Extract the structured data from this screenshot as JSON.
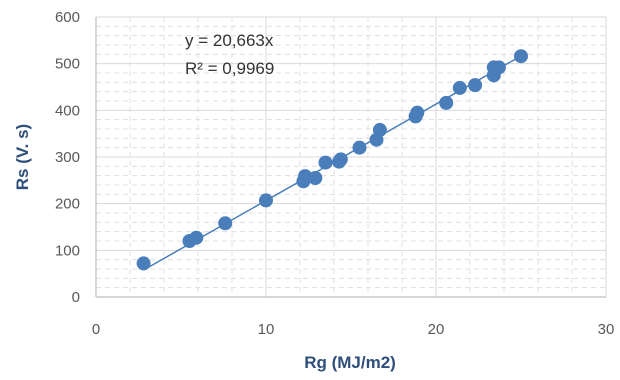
{
  "chart_data": {
    "type": "scatter",
    "xlabel": "Rg (MJ/m2)",
    "ylabel": "Rs (V. s)",
    "xlim": [
      0,
      30
    ],
    "ylim": [
      0,
      600
    ],
    "x_ticks": [
      "0",
      "10",
      "20",
      "30"
    ],
    "y_ticks": [
      "0",
      "100",
      "200",
      "300",
      "400",
      "500",
      "600"
    ],
    "grid": true,
    "colors": {
      "marker": "#4a7ebb",
      "trendline": "#4a7ebb",
      "grid": "#d9d9d9",
      "axis": "#bfbfbf"
    },
    "annotations": {
      "equation": "y = 20,663x",
      "r_squared": "R² = 0,9969"
    },
    "trendline": {
      "type": "linear",
      "slope": 20.663,
      "intercept": 0,
      "x_range": [
        2.8,
        25
      ]
    },
    "points": [
      {
        "x": 2.8,
        "y": 72
      },
      {
        "x": 5.5,
        "y": 120
      },
      {
        "x": 5.9,
        "y": 127
      },
      {
        "x": 7.6,
        "y": 158
      },
      {
        "x": 10.0,
        "y": 207
      },
      {
        "x": 12.2,
        "y": 248
      },
      {
        "x": 12.3,
        "y": 259
      },
      {
        "x": 12.9,
        "y": 255
      },
      {
        "x": 13.5,
        "y": 288
      },
      {
        "x": 14.3,
        "y": 290
      },
      {
        "x": 14.4,
        "y": 295
      },
      {
        "x": 15.5,
        "y": 320
      },
      {
        "x": 16.5,
        "y": 337
      },
      {
        "x": 16.7,
        "y": 358
      },
      {
        "x": 18.8,
        "y": 387
      },
      {
        "x": 18.9,
        "y": 395
      },
      {
        "x": 20.6,
        "y": 416
      },
      {
        "x": 21.4,
        "y": 448
      },
      {
        "x": 22.3,
        "y": 454
      },
      {
        "x": 23.4,
        "y": 475
      },
      {
        "x": 23.4,
        "y": 492
      },
      {
        "x": 23.7,
        "y": 492
      },
      {
        "x": 25.0,
        "y": 516
      }
    ]
  }
}
